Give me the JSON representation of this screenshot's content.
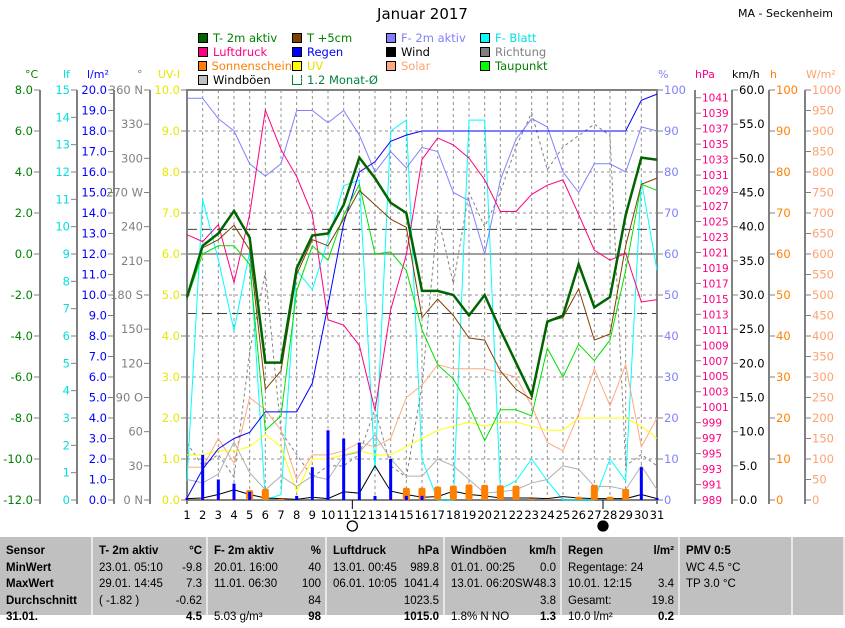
{
  "title": "Januar 2017",
  "station": "MA - Seckenheim",
  "legend": [
    {
      "label": "T- 2m aktiv",
      "color": "#006400",
      "text": "#008000"
    },
    {
      "label": "T +5cm",
      "color": "#804000",
      "text": "#008000"
    },
    {
      "label": "F- 2m aktiv",
      "color": "#8080ff",
      "text": "#8080ff"
    },
    {
      "label": "F- Blatt",
      "color": "#00ffff",
      "text": "#00e0e0"
    },
    {
      "label": "Luftdruck",
      "color": "#ff0080",
      "text": "#ff0080"
    },
    {
      "label": "Regen",
      "color": "#0000ff",
      "text": "#0000ff"
    },
    {
      "label": "Wind",
      "color": "#000000",
      "text": "#000000"
    },
    {
      "label": "Richtung",
      "color": "#808080",
      "text": "#808080"
    },
    {
      "label": "Sonnenschein",
      "color": "#ff8000",
      "text": "#ff8000"
    },
    {
      "label": "UV",
      "color": "#ffff00",
      "text": "#e0e000"
    },
    {
      "label": "Solar",
      "color": "#ffa880",
      "text": "#ffa070"
    },
    {
      "label": "Taupunkt",
      "color": "#00ff00",
      "text": "#008000"
    },
    {
      "label": "Windböen",
      "color": "#c0c0c0",
      "text": "#000000"
    },
    {
      "label": "1.2 Monat-Ø",
      "color": "none",
      "text": "#008040"
    }
  ],
  "chart_data": {
    "type": "line",
    "x": [
      1,
      2,
      3,
      4,
      5,
      6,
      7,
      8,
      9,
      10,
      11,
      12,
      13,
      14,
      15,
      16,
      17,
      18,
      19,
      20,
      21,
      22,
      23,
      24,
      25,
      26,
      27,
      28,
      29,
      30,
      31
    ],
    "grid": true,
    "axes": [
      {
        "id": "c",
        "unit": "°C",
        "color": "#008000",
        "side": "left",
        "ylim": [
          -12,
          8
        ],
        "ticks": [
          "8.0",
          "6.0",
          "4.0",
          "2.0",
          "0.0",
          "-2.0",
          "-4.0",
          "-6.0",
          "-8.0",
          "-10.0",
          "-12.0"
        ]
      },
      {
        "id": "lf",
        "unit": "lf",
        "color": "#00e0e0",
        "side": "left",
        "ylim": [
          0,
          15
        ],
        "ticks": [
          "15",
          "14",
          "13",
          "12",
          "11",
          "10",
          "9",
          "8",
          "7",
          "6",
          "5",
          "4",
          "3",
          "2",
          "1",
          "0"
        ]
      },
      {
        "id": "rain",
        "unit": "l/m²",
        "color": "#0000ff",
        "side": "left",
        "ylim": [
          0,
          20
        ],
        "ticks": [
          "20.0",
          "19.0",
          "18.0",
          "17.0",
          "16.0",
          "15.0",
          "14.0",
          "13.0",
          "12.0",
          "11.0",
          "10.0",
          "9.0",
          "8.0",
          "7.0",
          "6.0",
          "5.0",
          "4.0",
          "3.0",
          "2.0",
          "1.0",
          "0.0"
        ]
      },
      {
        "id": "dir",
        "unit": "°",
        "color": "#808080",
        "side": "left",
        "ylim": [
          0,
          360
        ],
        "ticks": [
          "360 N",
          "330",
          "300",
          "270 W",
          "240",
          "210",
          "180 S",
          "150",
          "120",
          "90 O",
          "60",
          "30",
          "0 N"
        ]
      },
      {
        "id": "uv",
        "unit": "UV-I",
        "color": "#e8e800",
        "side": "left",
        "ylim": [
          0,
          10
        ],
        "ticks": [
          "10.0",
          "9.0",
          "8.0",
          "7.0",
          "6.0",
          "5.0",
          "4.0",
          "3.0",
          "2.0",
          "1.0",
          "0.0"
        ]
      },
      {
        "id": "pct",
        "unit": "%",
        "color": "#8080ff",
        "side": "right",
        "ylim": [
          0,
          100
        ],
        "ticks": [
          "100",
          "90",
          "80",
          "70",
          "60",
          "50",
          "40",
          "30",
          "20",
          "10",
          "0"
        ]
      },
      {
        "id": "hpa",
        "unit": "hPa",
        "color": "#ff0080",
        "side": "right",
        "ylim": [
          989,
          1042
        ],
        "ticks": [
          "1041",
          "1039",
          "1037",
          "1035",
          "1033",
          "1031",
          "1029",
          "1027",
          "1025",
          "1023",
          "1021",
          "1019",
          "1017",
          "1015",
          "1013",
          "1011",
          "1009",
          "1007",
          "1005",
          "1003",
          "1001",
          "999",
          "997",
          "995",
          "993",
          "991",
          "989"
        ]
      },
      {
        "id": "kmh",
        "unit": "km/h",
        "color": "#000000",
        "side": "right",
        "ylim": [
          0,
          60
        ],
        "ticks": [
          "60.0",
          "55.0",
          "50.0",
          "45.0",
          "40.0",
          "35.0",
          "30.0",
          "25.0",
          "20.0",
          "15.0",
          "10.0",
          "5.0",
          "0.0"
        ]
      },
      {
        "id": "h",
        "unit": "h",
        "color": "#ff8000",
        "side": "right",
        "ylim": [
          0,
          100
        ],
        "ticks": [
          "100",
          "90",
          "80",
          "70",
          "60",
          "50",
          "40",
          "30",
          "20",
          "10",
          "0"
        ]
      },
      {
        "id": "wm2",
        "unit": "W/m²",
        "color": "#ffa070",
        "side": "right",
        "ylim": [
          0,
          1000
        ],
        "ticks": [
          "1000",
          "950",
          "900",
          "850",
          "800",
          "750",
          "700",
          "650",
          "600",
          "550",
          "500",
          "450",
          "400",
          "350",
          "300",
          "250",
          "200",
          "150",
          "100",
          "50",
          "0"
        ]
      }
    ],
    "reference_lines": {
      "axis": "c",
      "values": [
        1.2,
        -2.9
      ],
      "color": "#404040"
    },
    "series": [
      {
        "name": "F- Blatt",
        "axis": "lf",
        "kind": "line",
        "color": "#00ffff",
        "values": [
          0.7,
          11,
          8.8,
          6.2,
          9.1,
          0,
          0.2,
          8.4,
          7.7,
          9.5,
          11.5,
          11.7,
          1.1,
          13.5,
          13.9,
          1.5,
          0,
          0,
          13.9,
          13.9,
          0.4,
          0.7,
          1.5,
          0.7,
          0,
          0,
          0,
          1.5,
          0.7,
          11.7,
          8.4
        ]
      },
      {
        "name": "Richtung",
        "axis": "dir",
        "kind": "dash",
        "color": "#808080",
        "values": [
          50,
          30,
          40,
          20,
          130,
          200,
          60,
          40,
          20,
          30,
          30,
          40,
          80,
          30,
          20,
          100,
          250,
          190,
          270,
          240,
          270,
          310,
          340,
          290,
          310,
          320,
          330,
          320,
          30,
          40,
          30
        ]
      },
      {
        "name": "F- 2m aktiv",
        "axis": "pct",
        "kind": "line",
        "color": "#8080ff",
        "values": [
          98,
          98,
          93,
          90,
          82,
          79,
          82,
          95,
          95,
          92,
          95,
          89,
          80,
          85,
          81,
          86,
          85,
          75,
          73,
          60,
          78,
          88,
          93,
          91,
          80,
          75,
          82,
          82,
          80,
          91,
          90
        ]
      },
      {
        "name": "Solar",
        "axis": "wm2",
        "kind": "line",
        "color": "#ffa880",
        "values": [
          80,
          80,
          150,
          90,
          250,
          220,
          170,
          50,
          110,
          110,
          120,
          140,
          130,
          150,
          250,
          280,
          330,
          320,
          320,
          320,
          310,
          300,
          230,
          140,
          120,
          210,
          320,
          230,
          330,
          130,
          200
        ]
      },
      {
        "name": "UV",
        "axis": "uv",
        "kind": "line",
        "color": "#ffff00",
        "values": [
          1.1,
          1.1,
          1.2,
          1.2,
          1.3,
          1.6,
          1.3,
          0.2,
          1.0,
          1.0,
          1.1,
          1.2,
          1.1,
          1.1,
          1.3,
          1.5,
          1.7,
          1.8,
          1.9,
          1.8,
          1.9,
          1.9,
          1.8,
          1.7,
          1.7,
          2.0,
          2.0,
          2.0,
          2.0,
          1.8,
          1.5
        ]
      },
      {
        "name": "Windböen",
        "axis": "kmh",
        "kind": "line",
        "color": "#b0b0b0",
        "values": [
          3,
          2.5,
          3.8,
          8.5,
          4,
          1.5,
          3.5,
          2,
          3.5,
          3,
          6.5,
          7,
          9.5,
          6,
          3.5,
          3.5,
          6,
          5,
          3,
          1,
          1.2,
          1.5,
          2.5,
          3,
          5,
          4.5,
          2,
          2,
          1.5,
          5,
          1.5
        ]
      },
      {
        "name": "Wind",
        "axis": "kmh",
        "kind": "line",
        "color": "#000000",
        "values": [
          0.2,
          0.3,
          0.8,
          1.5,
          0.8,
          0.3,
          0.2,
          0.1,
          0.4,
          0.2,
          1.2,
          1.0,
          5.0,
          1.3,
          0.8,
          0.4,
          0.5,
          1.3,
          0.8,
          0.6,
          0.3,
          0.3,
          0.3,
          0.2,
          0.5,
          0.3,
          0.2,
          0.2,
          0.2,
          0.8,
          0.2
        ]
      },
      {
        "name": "Sonnenschein",
        "axis": "h",
        "kind": "bar",
        "color": "#ff8000",
        "values": [
          0.2,
          0.2,
          0.2,
          0.2,
          2.4,
          2.7,
          0.3,
          0,
          0,
          0,
          0,
          0,
          0,
          0.2,
          3.0,
          3.0,
          3.3,
          3.5,
          3.8,
          3.7,
          3.6,
          3.5,
          0.3,
          0.2,
          0,
          0.8,
          3.7,
          0.8,
          2.7,
          0,
          0
        ]
      },
      {
        "name": "Regen",
        "axis": "rain",
        "kind": "bar",
        "color": "#0000ff",
        "values": [
          0.1,
          2.2,
          1.0,
          0.8,
          0.4,
          0,
          0,
          0.2,
          1.6,
          3.4,
          3.0,
          2.8,
          0.2,
          2.0,
          0.2,
          0.2,
          0,
          0,
          0,
          0,
          0,
          0,
          0,
          0,
          0,
          0,
          0,
          0,
          0,
          1.6,
          0.1
        ]
      },
      {
        "name": "Regen",
        "axis": "rain",
        "kind": "line",
        "color": "#0000ff",
        "values": [
          0.1,
          1.5,
          2.5,
          3.0,
          3.3,
          4.3,
          4.3,
          4.3,
          5.7,
          9.5,
          13.5,
          16.0,
          16.5,
          17.5,
          17.8,
          18.0,
          18.0,
          18.0,
          18.0,
          18.0,
          18.0,
          18.0,
          18.0,
          18.0,
          18.0,
          18.0,
          18.0,
          18.0,
          18.0,
          19.5,
          19.8
        ]
      },
      {
        "name": "Luftdruck",
        "axis": "hpa",
        "kind": "line",
        "color": "#ff0080",
        "values": [
          1023.3,
          1022.4,
          1024.6,
          1017.1,
          1025.9,
          1039.4,
          1034.3,
          1030.8,
          1025.9,
          1012.3,
          1011.6,
          1009.0,
          1000.6,
          1013.6,
          1020.7,
          1033.0,
          1035.8,
          1034.9,
          1033.2,
          1030.4,
          1026.3,
          1026.3,
          1028.5,
          1029.7,
          1030.4,
          1025.9,
          1021.3,
          1020.0,
          1020.9,
          1014.6,
          1014.9
        ]
      },
      {
        "name": "Taupunkt",
        "axis": "c",
        "kind": "line",
        "color": "#00e000",
        "values": [
          -2.2,
          0.0,
          0.4,
          0.4,
          -0.5,
          -8.6,
          -7.9,
          -1.8,
          0.4,
          -0.3,
          1.9,
          3.4,
          0.0,
          0.1,
          -0.8,
          -3.7,
          -5.4,
          -6.1,
          -7.4,
          -9.1,
          -7.6,
          -7.6,
          -7.9,
          -4.6,
          -6.0,
          -4.4,
          -5.2,
          -4.2,
          -0.8,
          3.4,
          3.1
        ]
      },
      {
        "name": "T +5cm",
        "axis": "c",
        "kind": "line",
        "color": "#804000",
        "values": [
          -2.2,
          0.3,
          0.7,
          1.4,
          0.2,
          -6.6,
          -5.7,
          -1.0,
          0.7,
          0.4,
          1.7,
          3.1,
          2.4,
          1.7,
          1.3,
          -3.1,
          -2.2,
          -3.0,
          -4.1,
          -4.2,
          -5.7,
          -6.6,
          -7.1,
          -3.3,
          -3.1,
          -1.7,
          -4.2,
          -3.9,
          0.4,
          3.4,
          3.7
        ]
      },
      {
        "name": "T- 2m aktiv",
        "axis": "c",
        "kind": "thick",
        "color": "#006400",
        "values": [
          -2.1,
          0.4,
          1.0,
          2.1,
          0.8,
          -5.3,
          -5.3,
          -0.7,
          0.9,
          1.0,
          2.4,
          4.7,
          3.7,
          2.5,
          2.0,
          -1.8,
          -1.8,
          -2.0,
          -3.0,
          -2.0,
          -3.7,
          -5.3,
          -6.9,
          -3.3,
          -3.0,
          -0.5,
          -2.6,
          -2.1,
          1.9,
          4.7,
          4.6
        ]
      }
    ],
    "moon": [
      {
        "day": 12,
        "phase": "full-moon"
      },
      {
        "day": 28,
        "phase": "new-moon"
      }
    ]
  },
  "table": [
    {
      "rows": [
        [
          "Sensor",
          ""
        ],
        [
          "MinWert",
          ""
        ],
        [
          "MaxWert",
          ""
        ],
        [
          "Durchschnitt",
          ""
        ],
        [
          "31.01.",
          ""
        ]
      ],
      "bold": true
    },
    {
      "rows": [
        [
          "T- 2m aktiv",
          "°C"
        ],
        [
          "23.01.  05:10",
          "-9.8"
        ],
        [
          "29.01.  14:45",
          "7.3"
        ],
        [
          "( -1.82 )",
          "-0.62"
        ],
        [
          "",
          "4.5"
        ]
      ]
    },
    {
      "rows": [
        [
          "F- 2m aktiv",
          "%"
        ],
        [
          "20.01.  16:00",
          "40"
        ],
        [
          "11.01.  06:30",
          "100"
        ],
        [
          "",
          "84"
        ],
        [
          "5.03 g/m³",
          "98"
        ]
      ]
    },
    {
      "rows": [
        [
          "Luftdruck",
          "hPa"
        ],
        [
          "13.01.  00:45",
          "989.8"
        ],
        [
          "06.01.  10:05",
          "1041.4"
        ],
        [
          "",
          "1023.5"
        ],
        [
          "",
          "1015.0"
        ]
      ]
    },
    {
      "rows": [
        [
          "Windböen",
          "km/h"
        ],
        [
          "01.01.  00:25",
          "0.0"
        ],
        [
          "13.01.  06:20SW",
          "48.3"
        ],
        [
          "",
          "3.8"
        ],
        [
          "1.8% N NO",
          "1.3"
        ]
      ]
    },
    {
      "rows": [
        [
          "Regen",
          "l/m²"
        ],
        [
          "Regentage: 24",
          ""
        ],
        [
          "10.01.  12:15",
          "3.4"
        ],
        [
          "Gesamt:",
          "19.8"
        ],
        [
          "10.0 l/m²",
          "0.2"
        ]
      ]
    },
    {
      "rows": [
        [
          "PMV 0:5",
          ""
        ],
        [
          "WC 4.5 °C",
          ""
        ],
        [
          "TP 3.0 °C",
          ""
        ],
        [
          "",
          ""
        ],
        [
          "",
          ""
        ]
      ]
    }
  ]
}
